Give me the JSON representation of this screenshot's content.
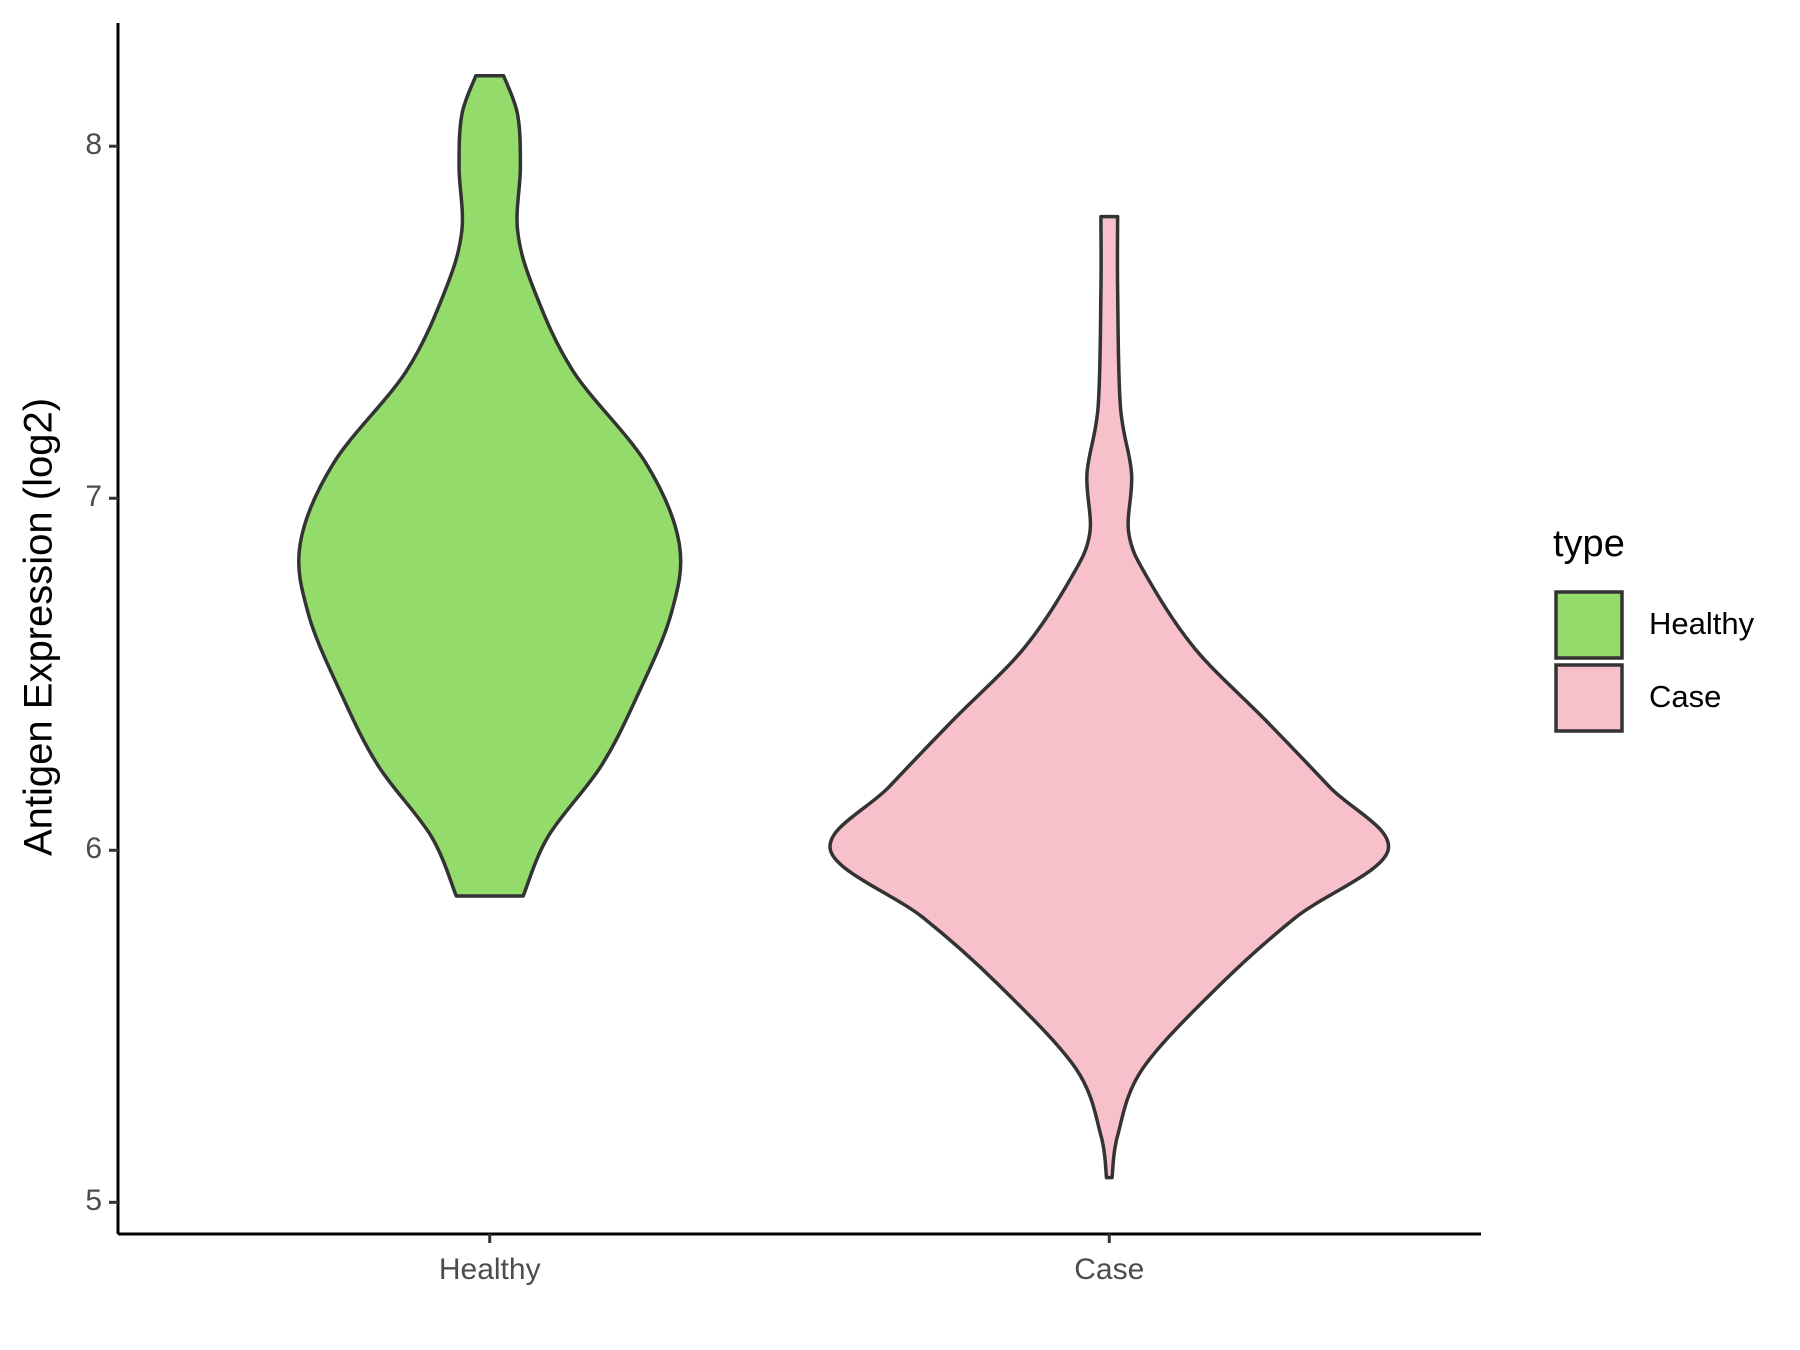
{
  "chart_data": {
    "type": "violin",
    "y_label": "Antigen Expression (log2)",
    "categories": [
      "Healthy",
      "Case"
    ],
    "legend_title": "type",
    "legend": "right",
    "ylim": [
      4.91,
      8.35
    ],
    "yticks": [
      5,
      6,
      7,
      8
    ],
    "series": [
      {
        "name": "Healthy",
        "color": "#93db6b",
        "y": [
          5.87,
          6.04,
          6.24,
          6.44,
          6.67,
          6.87,
          7.1,
          7.36,
          7.59,
          7.76,
          7.94,
          8.09,
          8.2
        ],
        "density": [
          0.12,
          0.21,
          0.4,
          0.53,
          0.65,
          0.68,
          0.56,
          0.3,
          0.16,
          0.1,
          0.11,
          0.1,
          0.05
        ]
      },
      {
        "name": "Case",
        "color": "#f7c0cb",
        "y": [
          5.07,
          5.19,
          5.38,
          5.62,
          5.81,
          6.0,
          6.18,
          6.37,
          6.57,
          6.77,
          6.9,
          7.07,
          7.26,
          7.59,
          7.8
        ],
        "density": [
          0.01,
          0.03,
          0.12,
          0.4,
          0.67,
          1,
          0.79,
          0.56,
          0.31,
          0.14,
          0.07,
          0.08,
          0.04,
          0.03,
          0.03
        ]
      }
    ]
  }
}
